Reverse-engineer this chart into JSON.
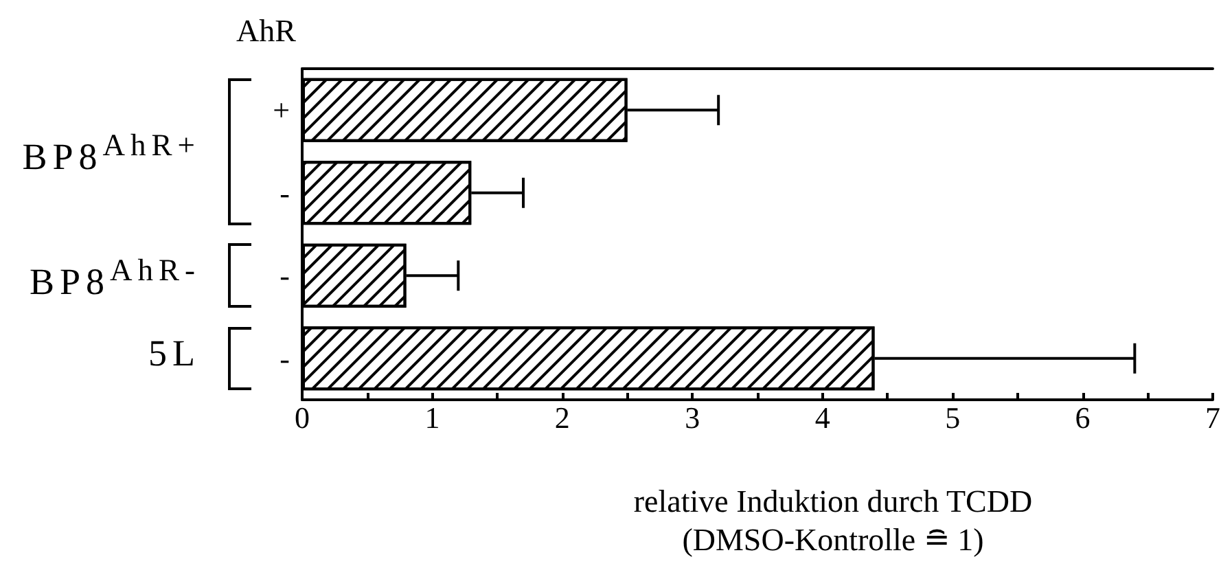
{
  "chart_data": {
    "type": "bar",
    "orientation": "horizontal",
    "title": "AhR",
    "xlabel": "relative Induktion durch TCDD\n(DMSO-Kontrolle ≘ 1)",
    "categories": [
      "+",
      "-",
      "-",
      "-"
    ],
    "series": [
      {
        "name": "BP8$^{AhR+}$",
        "color": "#000000",
        "values": [
          2.5,
          1.3,
          null,
          null
        ],
        "errors": [
          [
            2.5,
            3.2
          ],
          [
            1.3,
            1.7
          ],
          null,
          null
        ]
      },
      {
        "name": "BP8$^{AhR-}$",
        "color": "#000000",
        "values": [
          null,
          null,
          0.8,
          null
        ],
        "errors": [
          null,
          null,
          [
            0.8,
            1.2
          ],
          null
        ]
      },
      {
        "name": "5L",
        "color": "#000000",
        "values": [
          null,
          null,
          null,
          4.4
        ],
        "errors": [
          null,
          null,
          null,
          [
            4.4,
            6.4
          ]
        ]
      }
    ],
    "xlim": [
      0,
      7
    ],
    "xticks": [
      0,
      {
        "value": 0.5,
        "label": null
      },
      1,
      {
        "value": 1.5,
        "label": null
      },
      2,
      {
        "value": 2.5,
        "label": null
      },
      3,
      {
        "value": 3.5,
        "label": null
      },
      4,
      {
        "value": 4.5,
        "label": null
      },
      5,
      {
        "value": 5.5,
        "label": null
      },
      6,
      {
        "value": 6.5,
        "label": null
      },
      7
    ],
    "grid": false,
    "legend": "left"
  }
}
